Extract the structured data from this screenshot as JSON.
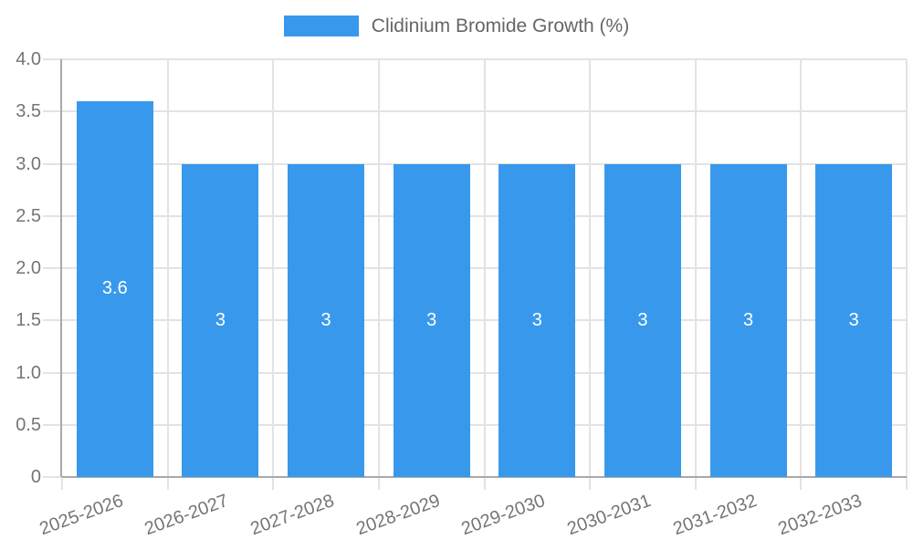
{
  "legend": {
    "label": "Clidinium Bromide Growth (%)"
  },
  "chart_data": {
    "type": "bar",
    "title": "",
    "xlabel": "",
    "ylabel": "",
    "legend_position": "top",
    "grid": true,
    "series_name": "Clidinium Bromide Growth (%)",
    "categories": [
      "2025-2026",
      "2026-2027",
      "2027-2028",
      "2028-2029",
      "2029-2030",
      "2030-2031",
      "2031-2032",
      "2032-2033"
    ],
    "values": [
      3.6,
      3,
      3,
      3,
      3,
      3,
      3,
      3
    ],
    "bar_labels": [
      "3.6",
      "3",
      "3",
      "3",
      "3",
      "3",
      "3",
      "3"
    ],
    "ylim": [
      0,
      4
    ],
    "y_tick_step": 0.5,
    "y_tick_labels": [
      "0",
      "0.5",
      "1.0",
      "1.5",
      "2.0",
      "2.5",
      "3.0",
      "3.5",
      "4.0"
    ],
    "colors": {
      "bar": "#3899ec",
      "grid": "#e3e3e3",
      "axis": "#a9a9a9",
      "tick_text": "#757575",
      "legend_text": "#666666",
      "bar_label_text": "#ffffff",
      "background": "#ffffff"
    }
  }
}
